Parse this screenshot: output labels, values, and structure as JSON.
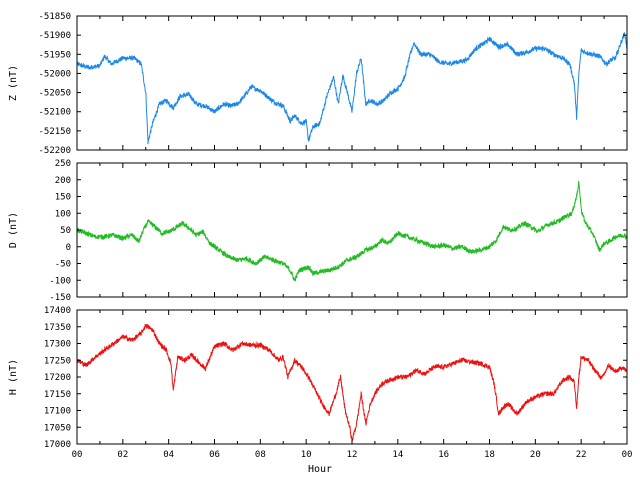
{
  "colors": {
    "background": "#ffffff",
    "axis": "#000000"
  },
  "xlabel": "Hour",
  "chart_data": [
    {
      "type": "line",
      "ylabel": "Z (nT)",
      "color": "#1e88e5",
      "xlim": [
        0,
        24
      ],
      "ylim": [
        -52200,
        -51850
      ],
      "yticks": [
        -51850,
        -51900,
        -51950,
        -52000,
        -52050,
        -52100,
        -52150,
        -52200
      ],
      "xticks": [
        "00",
        "02",
        "04",
        "06",
        "08",
        "10",
        "12",
        "14",
        "16",
        "18",
        "20",
        "22",
        "00"
      ],
      "x": [
        0.0,
        0.5,
        1.0,
        1.2,
        1.5,
        2.0,
        2.5,
        2.8,
        3.0,
        3.1,
        3.3,
        3.6,
        3.9,
        4.2,
        4.5,
        4.9,
        5.2,
        5.6,
        6.0,
        6.4,
        6.7,
        7.0,
        7.3,
        7.6,
        8.0,
        8.3,
        8.6,
        9.0,
        9.3,
        9.5,
        9.8,
        10.0,
        10.1,
        10.3,
        10.6,
        10.9,
        11.2,
        11.4,
        11.6,
        11.8,
        12.0,
        12.2,
        12.4,
        12.6,
        12.8,
        13.1,
        13.4,
        13.7,
        14.0,
        14.3,
        14.5,
        14.7,
        15.0,
        15.4,
        15.8,
        16.2,
        16.6,
        17.0,
        17.4,
        17.8,
        18.0,
        18.4,
        18.8,
        19.2,
        19.6,
        20.0,
        20.4,
        20.8,
        21.2,
        21.5,
        21.7,
        21.8,
        21.9,
        22.0,
        22.2,
        22.5,
        22.8,
        23.1,
        23.3,
        23.5,
        23.7,
        23.9,
        24.0
      ],
      "y": [
        -51975,
        -51985,
        -51980,
        -51955,
        -51975,
        -51960,
        -51960,
        -51975,
        -52050,
        -52180,
        -52130,
        -52080,
        -52070,
        -52090,
        -52060,
        -52055,
        -52080,
        -52085,
        -52100,
        -52080,
        -52085,
        -52080,
        -52060,
        -52035,
        -52045,
        -52060,
        -52075,
        -52085,
        -52125,
        -52110,
        -52130,
        -52125,
        -52175,
        -52140,
        -52130,
        -52060,
        -52010,
        -52080,
        -52005,
        -52050,
        -52100,
        -52000,
        -51960,
        -52080,
        -52070,
        -52080,
        -52070,
        -52050,
        -52040,
        -52010,
        -51960,
        -51920,
        -51950,
        -51950,
        -51970,
        -51975,
        -51970,
        -51965,
        -51935,
        -51920,
        -51910,
        -51930,
        -51925,
        -51950,
        -51945,
        -51935,
        -51935,
        -51950,
        -51960,
        -51975,
        -52025,
        -52115,
        -52000,
        -51940,
        -51945,
        -51950,
        -51955,
        -51975,
        -51965,
        -51960,
        -51925,
        -51895,
        -51935
      ]
    },
    {
      "type": "line",
      "ylabel": "D (nT)",
      "color": "#22bb22",
      "xlim": [
        0,
        24
      ],
      "ylim": [
        -150,
        250
      ],
      "yticks": [
        250,
        200,
        150,
        100,
        50,
        0,
        -50,
        -100,
        -150
      ],
      "xticks": [
        "00",
        "02",
        "04",
        "06",
        "08",
        "10",
        "12",
        "14",
        "16",
        "18",
        "20",
        "22",
        "00"
      ],
      "x": [
        0.0,
        0.4,
        0.8,
        1.2,
        1.6,
        2.0,
        2.4,
        2.7,
        2.9,
        3.1,
        3.4,
        3.7,
        4.0,
        4.3,
        4.6,
        4.9,
        5.2,
        5.5,
        5.8,
        6.2,
        6.6,
        7.0,
        7.4,
        7.8,
        8.2,
        8.6,
        9.0,
        9.3,
        9.5,
        9.7,
        9.9,
        10.1,
        10.3,
        10.6,
        11.0,
        11.4,
        11.8,
        12.2,
        12.6,
        13.0,
        13.3,
        13.6,
        14.0,
        14.4,
        14.8,
        15.2,
        15.6,
        16.0,
        16.4,
        16.8,
        17.2,
        17.6,
        18.0,
        18.3,
        18.6,
        18.9,
        19.2,
        19.5,
        19.8,
        20.1,
        20.4,
        20.7,
        21.0,
        21.3,
        21.6,
        21.8,
        21.9,
        22.0,
        22.2,
        22.5,
        22.8,
        23.0,
        23.2,
        23.5,
        23.8,
        24.0
      ],
      "y": [
        50,
        40,
        30,
        30,
        35,
        25,
        35,
        15,
        50,
        75,
        60,
        40,
        45,
        55,
        70,
        55,
        35,
        45,
        10,
        -10,
        -30,
        -40,
        -35,
        -50,
        -30,
        -40,
        -50,
        -70,
        -100,
        -70,
        -65,
        -60,
        -80,
        -75,
        -70,
        -60,
        -40,
        -30,
        -10,
        0,
        20,
        10,
        40,
        30,
        20,
        10,
        0,
        5,
        -5,
        0,
        -15,
        -10,
        0,
        20,
        60,
        50,
        55,
        70,
        60,
        45,
        60,
        70,
        75,
        90,
        100,
        150,
        195,
        110,
        70,
        40,
        -10,
        10,
        15,
        30,
        35,
        30
      ]
    },
    {
      "type": "line",
      "ylabel": "H (nT)",
      "color": "#ee1111",
      "xlim": [
        0,
        24
      ],
      "ylim": [
        17000,
        17400
      ],
      "yticks": [
        17400,
        17350,
        17300,
        17250,
        17200,
        17150,
        17100,
        17050,
        17000
      ],
      "xticks": [
        "00",
        "02",
        "04",
        "06",
        "08",
        "10",
        "12",
        "14",
        "16",
        "18",
        "20",
        "22",
        "00"
      ],
      "x": [
        0.0,
        0.4,
        0.8,
        1.2,
        1.6,
        2.0,
        2.4,
        2.8,
        3.0,
        3.3,
        3.6,
        3.9,
        4.1,
        4.2,
        4.4,
        4.7,
        5.0,
        5.3,
        5.6,
        6.0,
        6.4,
        6.8,
        7.2,
        7.6,
        8.0,
        8.4,
        8.8,
        9.0,
        9.2,
        9.5,
        9.8,
        10.1,
        10.4,
        10.7,
        11.0,
        11.3,
        11.5,
        11.7,
        11.9,
        12.0,
        12.2,
        12.4,
        12.6,
        12.8,
        13.0,
        13.3,
        13.6,
        14.0,
        14.4,
        14.8,
        15.2,
        15.6,
        16.0,
        16.4,
        16.8,
        17.2,
        17.6,
        18.0,
        18.2,
        18.4,
        18.6,
        18.8,
        19.2,
        19.6,
        20.0,
        20.4,
        20.8,
        21.2,
        21.5,
        21.7,
        21.8,
        21.9,
        22.0,
        22.3,
        22.6,
        22.9,
        23.2,
        23.5,
        23.8,
        24.0
      ],
      "y": [
        17250,
        17235,
        17260,
        17280,
        17300,
        17320,
        17310,
        17330,
        17355,
        17340,
        17300,
        17280,
        17240,
        17160,
        17260,
        17250,
        17265,
        17245,
        17225,
        17290,
        17300,
        17280,
        17300,
        17295,
        17295,
        17280,
        17250,
        17260,
        17200,
        17250,
        17230,
        17200,
        17160,
        17120,
        17090,
        17150,
        17200,
        17100,
        17050,
        17010,
        17060,
        17150,
        17060,
        17120,
        17150,
        17180,
        17190,
        17200,
        17200,
        17220,
        17210,
        17230,
        17230,
        17240,
        17250,
        17245,
        17240,
        17230,
        17180,
        17090,
        17110,
        17120,
        17090,
        17125,
        17140,
        17150,
        17150,
        17190,
        17200,
        17185,
        17110,
        17200,
        17260,
        17250,
        17220,
        17195,
        17235,
        17215,
        17230,
        17215
      ]
    }
  ]
}
